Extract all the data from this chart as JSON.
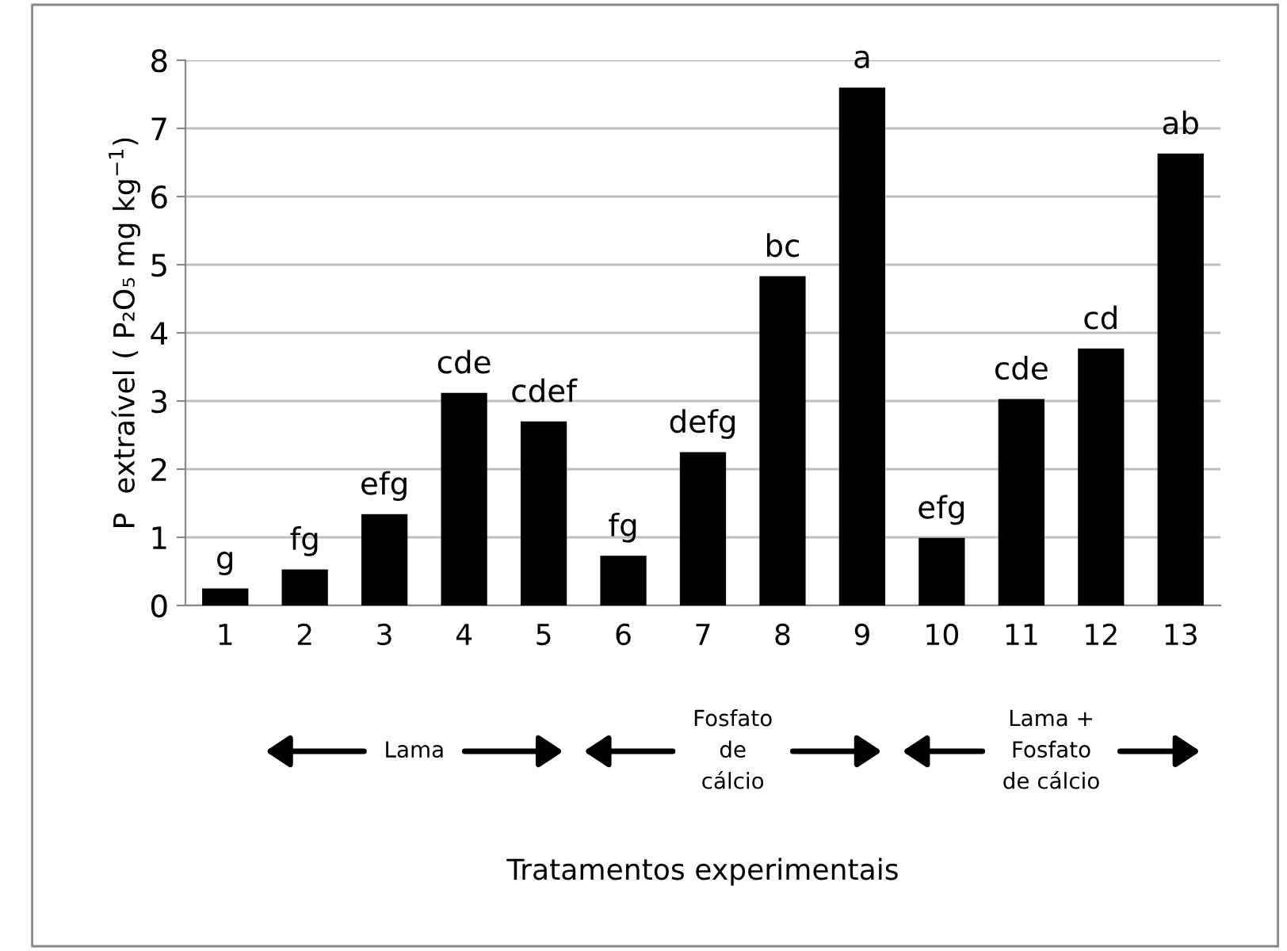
{
  "chart_data": {
    "type": "bar",
    "ylabel": "P  extraível ( P₂O₅ mg kg$^{−1}$)",
    "categories": [
      "1",
      "2",
      "3",
      "4",
      "5",
      "6",
      "7",
      "8",
      "9",
      "10",
      "11",
      "12",
      "13"
    ],
    "values": [
      0.25,
      0.53,
      1.34,
      3.12,
      2.7,
      0.73,
      2.25,
      4.83,
      7.6,
      0.99,
      3.03,
      3.77,
      6.63
    ],
    "color": "#000000",
    "ylim": [
      0,
      8
    ],
    "yticks": [
      0,
      1,
      2,
      3,
      4,
      5,
      6,
      7,
      8
    ],
    "grid": "y",
    "legend": false,
    "annotations": [
      {
        "text": "g",
        "x": "1",
        "y": 0.25
      },
      {
        "text": "fg",
        "x": "2",
        "y": 0.53
      },
      {
        "text": "efg",
        "x": "3",
        "y": 1.34
      },
      {
        "text": "cde",
        "x": "4",
        "y": 3.12
      },
      {
        "text": "cdef",
        "x": "5",
        "y": 2.7
      },
      {
        "text": "fg",
        "x": "6",
        "y": 0.73
      },
      {
        "text": "defg",
        "x": "7",
        "y": 2.25
      },
      {
        "text": "bc",
        "x": "8",
        "y": 4.83
      },
      {
        "text": "a",
        "x": "9",
        "y": 7.6
      },
      {
        "text": "efg",
        "x": "10",
        "y": 0.99
      },
      {
        "text": "cde",
        "x": "11",
        "y": 3.03
      },
      {
        "text": "cd",
        "x": "12",
        "y": 3.77
      },
      {
        "text": "ab",
        "x": "13",
        "y": 6.63
      },
      "Lama",
      "Fosfato\nde\ncálcio",
      "Lama +\nFosfato\nde cálcio",
      "Tratamentos experimentais"
    ]
  }
}
